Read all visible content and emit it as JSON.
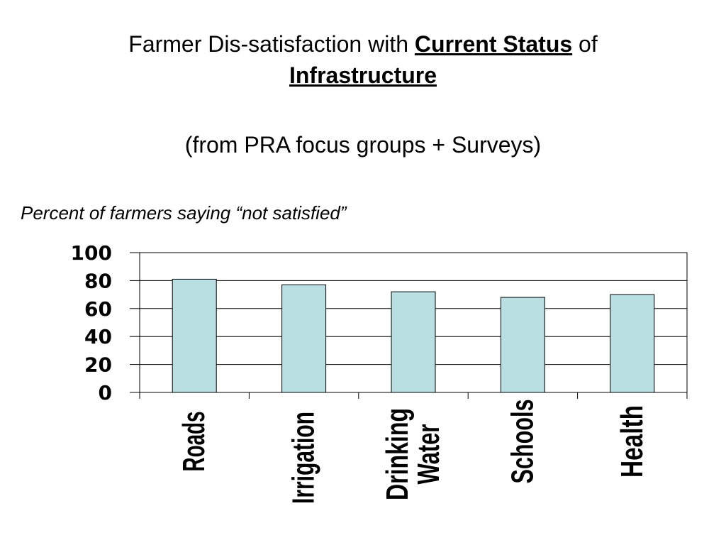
{
  "slide": {
    "title_prefix": "Farmer Dis-satisfaction with ",
    "title_emphasis_1": "Current Status",
    "title_middle": " of",
    "title_emphasis_2": "Infrastructure",
    "subtitle": "(from PRA focus groups + Surveys)",
    "chart_note": "Percent of farmers saying “not satisfied”"
  },
  "colors": {
    "bar_fill": "#b9dfe3",
    "bar_stroke": "#000000",
    "grid": "#000000"
  },
  "chart_data": {
    "type": "bar",
    "categories": [
      [
        "Roads"
      ],
      [
        "Irrigation"
      ],
      [
        "Drinking",
        "Water"
      ],
      [
        "Schools"
      ],
      [
        "Health"
      ]
    ],
    "values": [
      81,
      77,
      72,
      68,
      70
    ],
    "ylim": [
      0,
      100
    ],
    "yticks": [
      0,
      20,
      40,
      60,
      80,
      100
    ],
    "grid": true,
    "xlabel": "",
    "ylabel": ""
  }
}
